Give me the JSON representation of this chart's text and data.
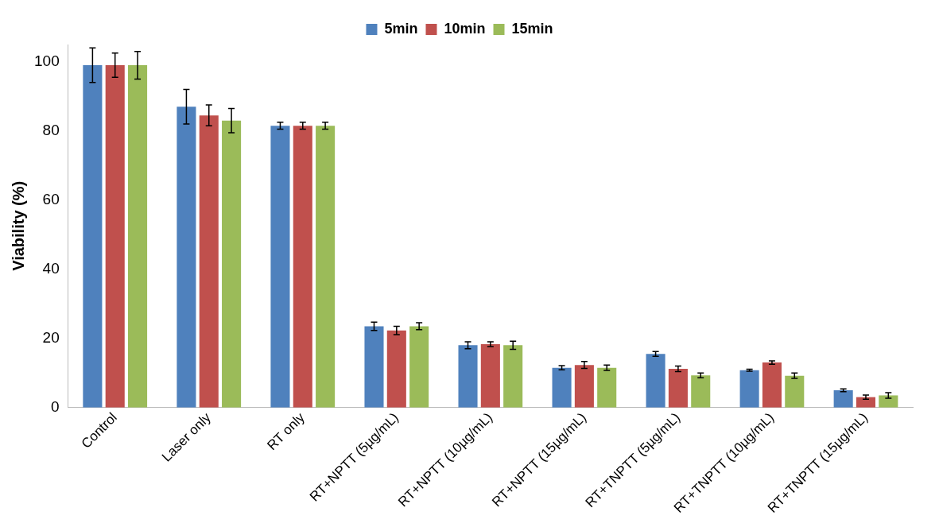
{
  "chart_data": {
    "type": "bar",
    "ylabel": "Viability (%)",
    "categories": [
      "Control",
      "Laser only",
      "RT only",
      "RT+NPTT (5µg/mL)",
      "RT+NPTT (10µg/mL)",
      "RT+NPTT (15µg/mL)",
      "RT+TNPTT (5µg/mL)",
      "RT+TNPTT (10µg/mL)",
      "RT+TNPTT (15µg/mL)"
    ],
    "series": [
      {
        "name": "5min",
        "color": "#4f81bd",
        "values": [
          99,
          87,
          81.5,
          23.5,
          18,
          11.5,
          15.5,
          10.8,
          5
        ],
        "errors": [
          5,
          5,
          1,
          1.2,
          1,
          0.6,
          0.7,
          0.3,
          0.4
        ]
      },
      {
        "name": "10min",
        "color": "#c0504d",
        "values": [
          99,
          84.5,
          81.5,
          22.3,
          18.3,
          12.3,
          11.2,
          13,
          3
        ],
        "errors": [
          3.5,
          3,
          1,
          1.2,
          0.7,
          1,
          0.8,
          0.5,
          0.6
        ]
      },
      {
        "name": "15min",
        "color": "#9bbb59",
        "values": [
          99,
          83,
          81.5,
          23.5,
          18,
          11.5,
          9.3,
          9.2,
          3.5
        ],
        "errors": [
          4,
          3.5,
          1,
          1,
          1.2,
          0.8,
          0.7,
          0.8,
          0.8
        ]
      }
    ],
    "ylim": [
      0,
      105
    ],
    "yticks": [
      0,
      20,
      40,
      60,
      80,
      100
    ],
    "grid": false,
    "legend": "top"
  }
}
